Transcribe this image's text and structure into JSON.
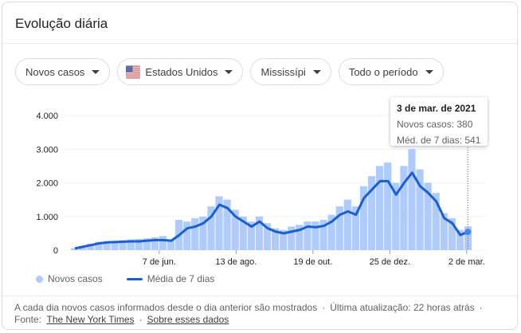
{
  "header": {
    "title": "Evolução diária"
  },
  "filters": [
    {
      "label": "Novos casos",
      "icon": "caret-down-icon"
    },
    {
      "label": "Estados Unidos",
      "icon": "us-flag-icon"
    },
    {
      "label": "Mississípi",
      "icon": "caret-down-icon"
    },
    {
      "label": "Todo o período",
      "icon": "caret-down-icon"
    }
  ],
  "colors": {
    "bars": "#aecbfa",
    "line": "#1a5fd0",
    "grid": "#f1f3f4"
  },
  "tooltip": {
    "date": "3 de mar. de 2021",
    "cases": "Novos casos: 380",
    "avg": "Méd. de 7 dias: 541"
  },
  "legend": {
    "bars": "Novos casos",
    "line": "Média de 7 dias"
  },
  "chart_data": {
    "type": "bar",
    "title": "",
    "xlabel": "",
    "ylabel": "",
    "ylim": [
      0,
      4000
    ],
    "grid": true,
    "legend_placement": "bottom-left",
    "yticks": [
      "0",
      "1.000",
      "2.000",
      "3.000",
      "4.000"
    ],
    "ytick_values": [
      0,
      1000,
      2000,
      3000,
      4000
    ],
    "xticks": [
      {
        "label": "7 de jun.",
        "date": "2020-06-07"
      },
      {
        "label": "13 de ago.",
        "date": "2020-08-13"
      },
      {
        "label": "19 de out.",
        "date": "2020-10-19"
      },
      {
        "label": "25 de dez.",
        "date": "2020-12-25"
      },
      {
        "label": "2 de mar.",
        "date": "2021-03-02"
      }
    ],
    "x_start": "2020-03-22",
    "x_end": "2021-03-08",
    "weeks": [
      "2020-03-22",
      "2020-03-29",
      "2020-04-05",
      "2020-04-12",
      "2020-04-19",
      "2020-04-26",
      "2020-05-03",
      "2020-05-10",
      "2020-05-17",
      "2020-05-24",
      "2020-05-31",
      "2020-06-07",
      "2020-06-14",
      "2020-06-21",
      "2020-06-28",
      "2020-07-05",
      "2020-07-12",
      "2020-07-19",
      "2020-07-26",
      "2020-08-02",
      "2020-08-09",
      "2020-08-16",
      "2020-08-23",
      "2020-08-30",
      "2020-09-06",
      "2020-09-13",
      "2020-09-20",
      "2020-09-27",
      "2020-10-04",
      "2020-10-11",
      "2020-10-18",
      "2020-10-25",
      "2020-11-01",
      "2020-11-08",
      "2020-11-15",
      "2020-11-22",
      "2020-11-29",
      "2020-12-06",
      "2020-12-13",
      "2020-12-20",
      "2020-12-27",
      "2021-01-03",
      "2021-01-10",
      "2021-01-17",
      "2021-01-24",
      "2021-01-31",
      "2021-02-07",
      "2021-02-14",
      "2021-02-21",
      "2021-02-28"
    ],
    "series": [
      {
        "name": "Novos casos",
        "type": "bar",
        "values": [
          60,
          120,
          190,
          250,
          270,
          280,
          300,
          320,
          330,
          350,
          380,
          420,
          300,
          900,
          850,
          950,
          1000,
          1300,
          1600,
          1500,
          1200,
          1000,
          850,
          1000,
          800,
          650,
          600,
          700,
          750,
          850,
          850,
          900,
          1050,
          1300,
          1500,
          1300,
          1900,
          2200,
          2500,
          2600,
          2000,
          2500,
          3000,
          2400,
          2000,
          1700,
          1100,
          950,
          600,
          700
        ]
      },
      {
        "name": "Média de 7 dias",
        "type": "line",
        "values": [
          50,
          100,
          150,
          200,
          230,
          240,
          250,
          260,
          260,
          280,
          300,
          300,
          280,
          450,
          650,
          700,
          800,
          1000,
          1350,
          1250,
          1000,
          850,
          700,
          850,
          650,
          550,
          500,
          550,
          600,
          700,
          680,
          720,
          850,
          1050,
          1150,
          1050,
          1550,
          1800,
          2050,
          2050,
          1650,
          2000,
          2300,
          1900,
          1700,
          1450,
          950,
          800,
          450,
          550
        ]
      }
    ],
    "highlight": {
      "date": "2021-03-03",
      "novos_casos": 380,
      "media_7_dias": 541
    }
  },
  "footer": {
    "note": "A cada dia novos casos informados desde o dia anterior são mostrados",
    "updated": "Última atualização: 22 horas atrás",
    "source_label": "Fonte:",
    "source_link": "The New York Times",
    "about_link": "Sobre esses dados",
    "sep": "·"
  }
}
